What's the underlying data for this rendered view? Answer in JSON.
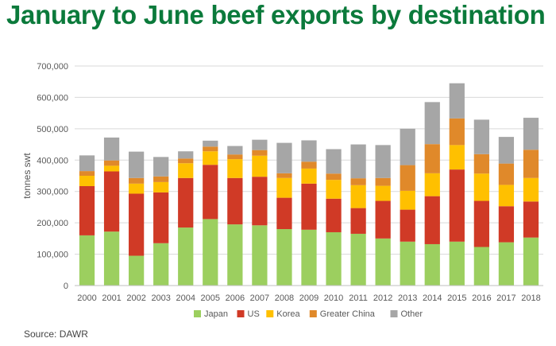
{
  "chart_data": {
    "type": "bar",
    "stacked": true,
    "title": "January to June beef exports by destination",
    "ylabel": "tonnes swt",
    "xlabel": "",
    "ylim": [
      0,
      700000
    ],
    "yticks": [
      "0",
      "100,000",
      "200,000",
      "300,000",
      "400,000",
      "500,000",
      "600,000",
      "700,000"
    ],
    "grid": true,
    "legend": "bottom",
    "categories": [
      "2000",
      "2001",
      "2002",
      "2003",
      "2004",
      "2005",
      "2006",
      "2007",
      "2008",
      "2009",
      "2010",
      "2011",
      "2012",
      "2013",
      "2014",
      "2015",
      "2016",
      "2017",
      "2018"
    ],
    "series": [
      {
        "name": "Japan",
        "color": "#9ccf5f",
        "values": [
          160000,
          172000,
          95000,
          135000,
          185000,
          212000,
          195000,
          192000,
          180000,
          178000,
          170000,
          165000,
          150000,
          140000,
          132000,
          140000,
          123000,
          138000,
          153000
        ]
      },
      {
        "name": "US",
        "color": "#d03a26",
        "values": [
          157000,
          192000,
          198000,
          162000,
          158000,
          173000,
          148000,
          155000,
          100000,
          147000,
          107000,
          82000,
          120000,
          102000,
          153000,
          230000,
          147000,
          115000,
          115000
        ]
      },
      {
        "name": "Korea",
        "color": "#ffc000",
        "values": [
          33000,
          18000,
          32000,
          33000,
          47000,
          43000,
          60000,
          67000,
          63000,
          48000,
          60000,
          73000,
          48000,
          60000,
          73000,
          78000,
          87000,
          68000,
          75000
        ]
      },
      {
        "name": "Greater China",
        "color": "#e0892a",
        "values": [
          15000,
          17000,
          18000,
          18000,
          15000,
          15000,
          15000,
          18000,
          15000,
          22000,
          20000,
          22000,
          25000,
          82000,
          93000,
          85000,
          62000,
          68000,
          90000
        ]
      },
      {
        "name": "Other",
        "color": "#a6a6a6",
        "values": [
          50000,
          73000,
          84000,
          62000,
          23000,
          19000,
          27000,
          33000,
          97000,
          68000,
          78000,
          108000,
          105000,
          116000,
          134000,
          112000,
          110000,
          85000,
          102000
        ]
      }
    ]
  },
  "footer": {
    "source": "Source: DAWR"
  }
}
